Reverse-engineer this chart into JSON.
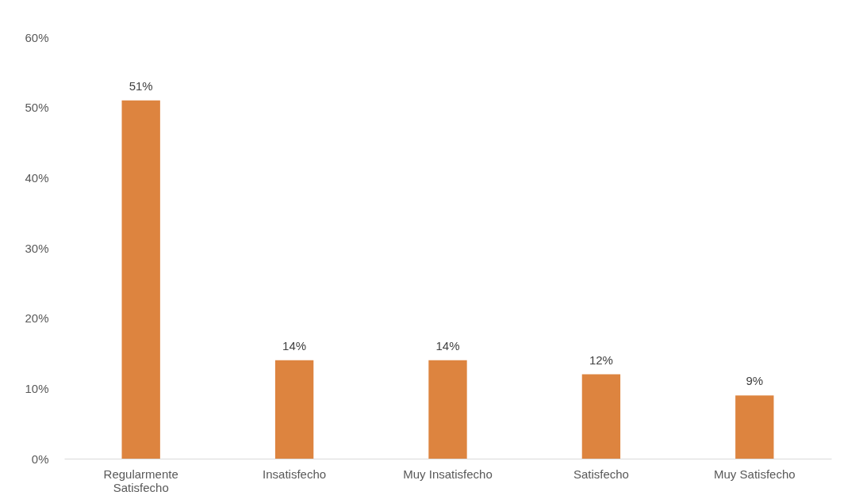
{
  "chart_data": {
    "type": "bar",
    "categories": [
      "Regularmente Satisfecho",
      "Insatisfecho",
      "Muy Insatisfecho",
      "Satisfecho",
      "Muy Satisfecho"
    ],
    "values": [
      51,
      14,
      14,
      12,
      9
    ],
    "value_labels": [
      "51%",
      "14%",
      "14%",
      "12%",
      "9%"
    ],
    "color": "#dd843f",
    "ylim": [
      0,
      60
    ],
    "yticks": [
      {
        "value": 0,
        "label": "0%"
      },
      {
        "value": 10,
        "label": "10%"
      },
      {
        "value": 20,
        "label": "20%"
      },
      {
        "value": 30,
        "label": "30%"
      },
      {
        "value": 40,
        "label": "40%"
      },
      {
        "value": 50,
        "label": "50%"
      },
      {
        "value": 60,
        "label": "60%"
      }
    ],
    "grid": false
  }
}
